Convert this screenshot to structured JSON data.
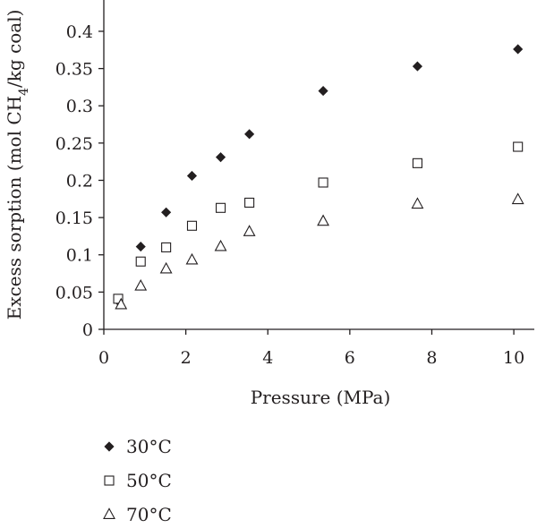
{
  "chart_data": {
    "type": "scatter",
    "xlabel": "Pressure (MPa)",
    "ylabel": {
      "main": "Excess sorption (mol CH",
      "sub": "4",
      "tail": "/kg coal)"
    },
    "xlim": [
      0,
      10.5
    ],
    "ylim": [
      0,
      0.43
    ],
    "xticks": [
      0,
      2,
      4,
      6,
      8,
      10
    ],
    "xtick_labels": [
      "0",
      "2",
      "4",
      "6",
      "8",
      "10"
    ],
    "yticks": [
      0,
      0.05,
      0.1,
      0.15,
      0.2,
      0.25,
      0.3,
      0.35,
      0.4
    ],
    "ytick_labels": [
      "0",
      "0.05",
      "0.1",
      "0.15",
      "0.2",
      "0.25",
      "0.3",
      "0.35",
      "0.4"
    ],
    "grid": false,
    "legend_position": "bottom-left",
    "series": [
      {
        "name": "30°C",
        "marker": "diamond-filled",
        "color": "#231f20",
        "points": [
          [
            0.35,
            0.038
          ],
          [
            0.9,
            0.111
          ],
          [
            1.52,
            0.157
          ],
          [
            2.15,
            0.206
          ],
          [
            2.85,
            0.231
          ],
          [
            3.55,
            0.262
          ],
          [
            5.35,
            0.32
          ],
          [
            7.65,
            0.353
          ],
          [
            10.1,
            0.376
          ]
        ]
      },
      {
        "name": "50°C",
        "marker": "square-open",
        "color": "#231f20",
        "points": [
          [
            0.35,
            0.041
          ],
          [
            0.9,
            0.091
          ],
          [
            1.52,
            0.11
          ],
          [
            2.15,
            0.139
          ],
          [
            2.85,
            0.163
          ],
          [
            3.55,
            0.17
          ],
          [
            5.35,
            0.197
          ],
          [
            7.65,
            0.223
          ],
          [
            10.1,
            0.245
          ]
        ]
      },
      {
        "name": "70°C",
        "marker": "triangle-open",
        "color": "#231f20",
        "points": [
          [
            0.42,
            0.033
          ],
          [
            0.9,
            0.058
          ],
          [
            1.52,
            0.081
          ],
          [
            2.15,
            0.093
          ],
          [
            2.85,
            0.111
          ],
          [
            3.55,
            0.131
          ],
          [
            5.35,
            0.145
          ],
          [
            7.65,
            0.168
          ],
          [
            10.1,
            0.174
          ]
        ]
      }
    ]
  }
}
